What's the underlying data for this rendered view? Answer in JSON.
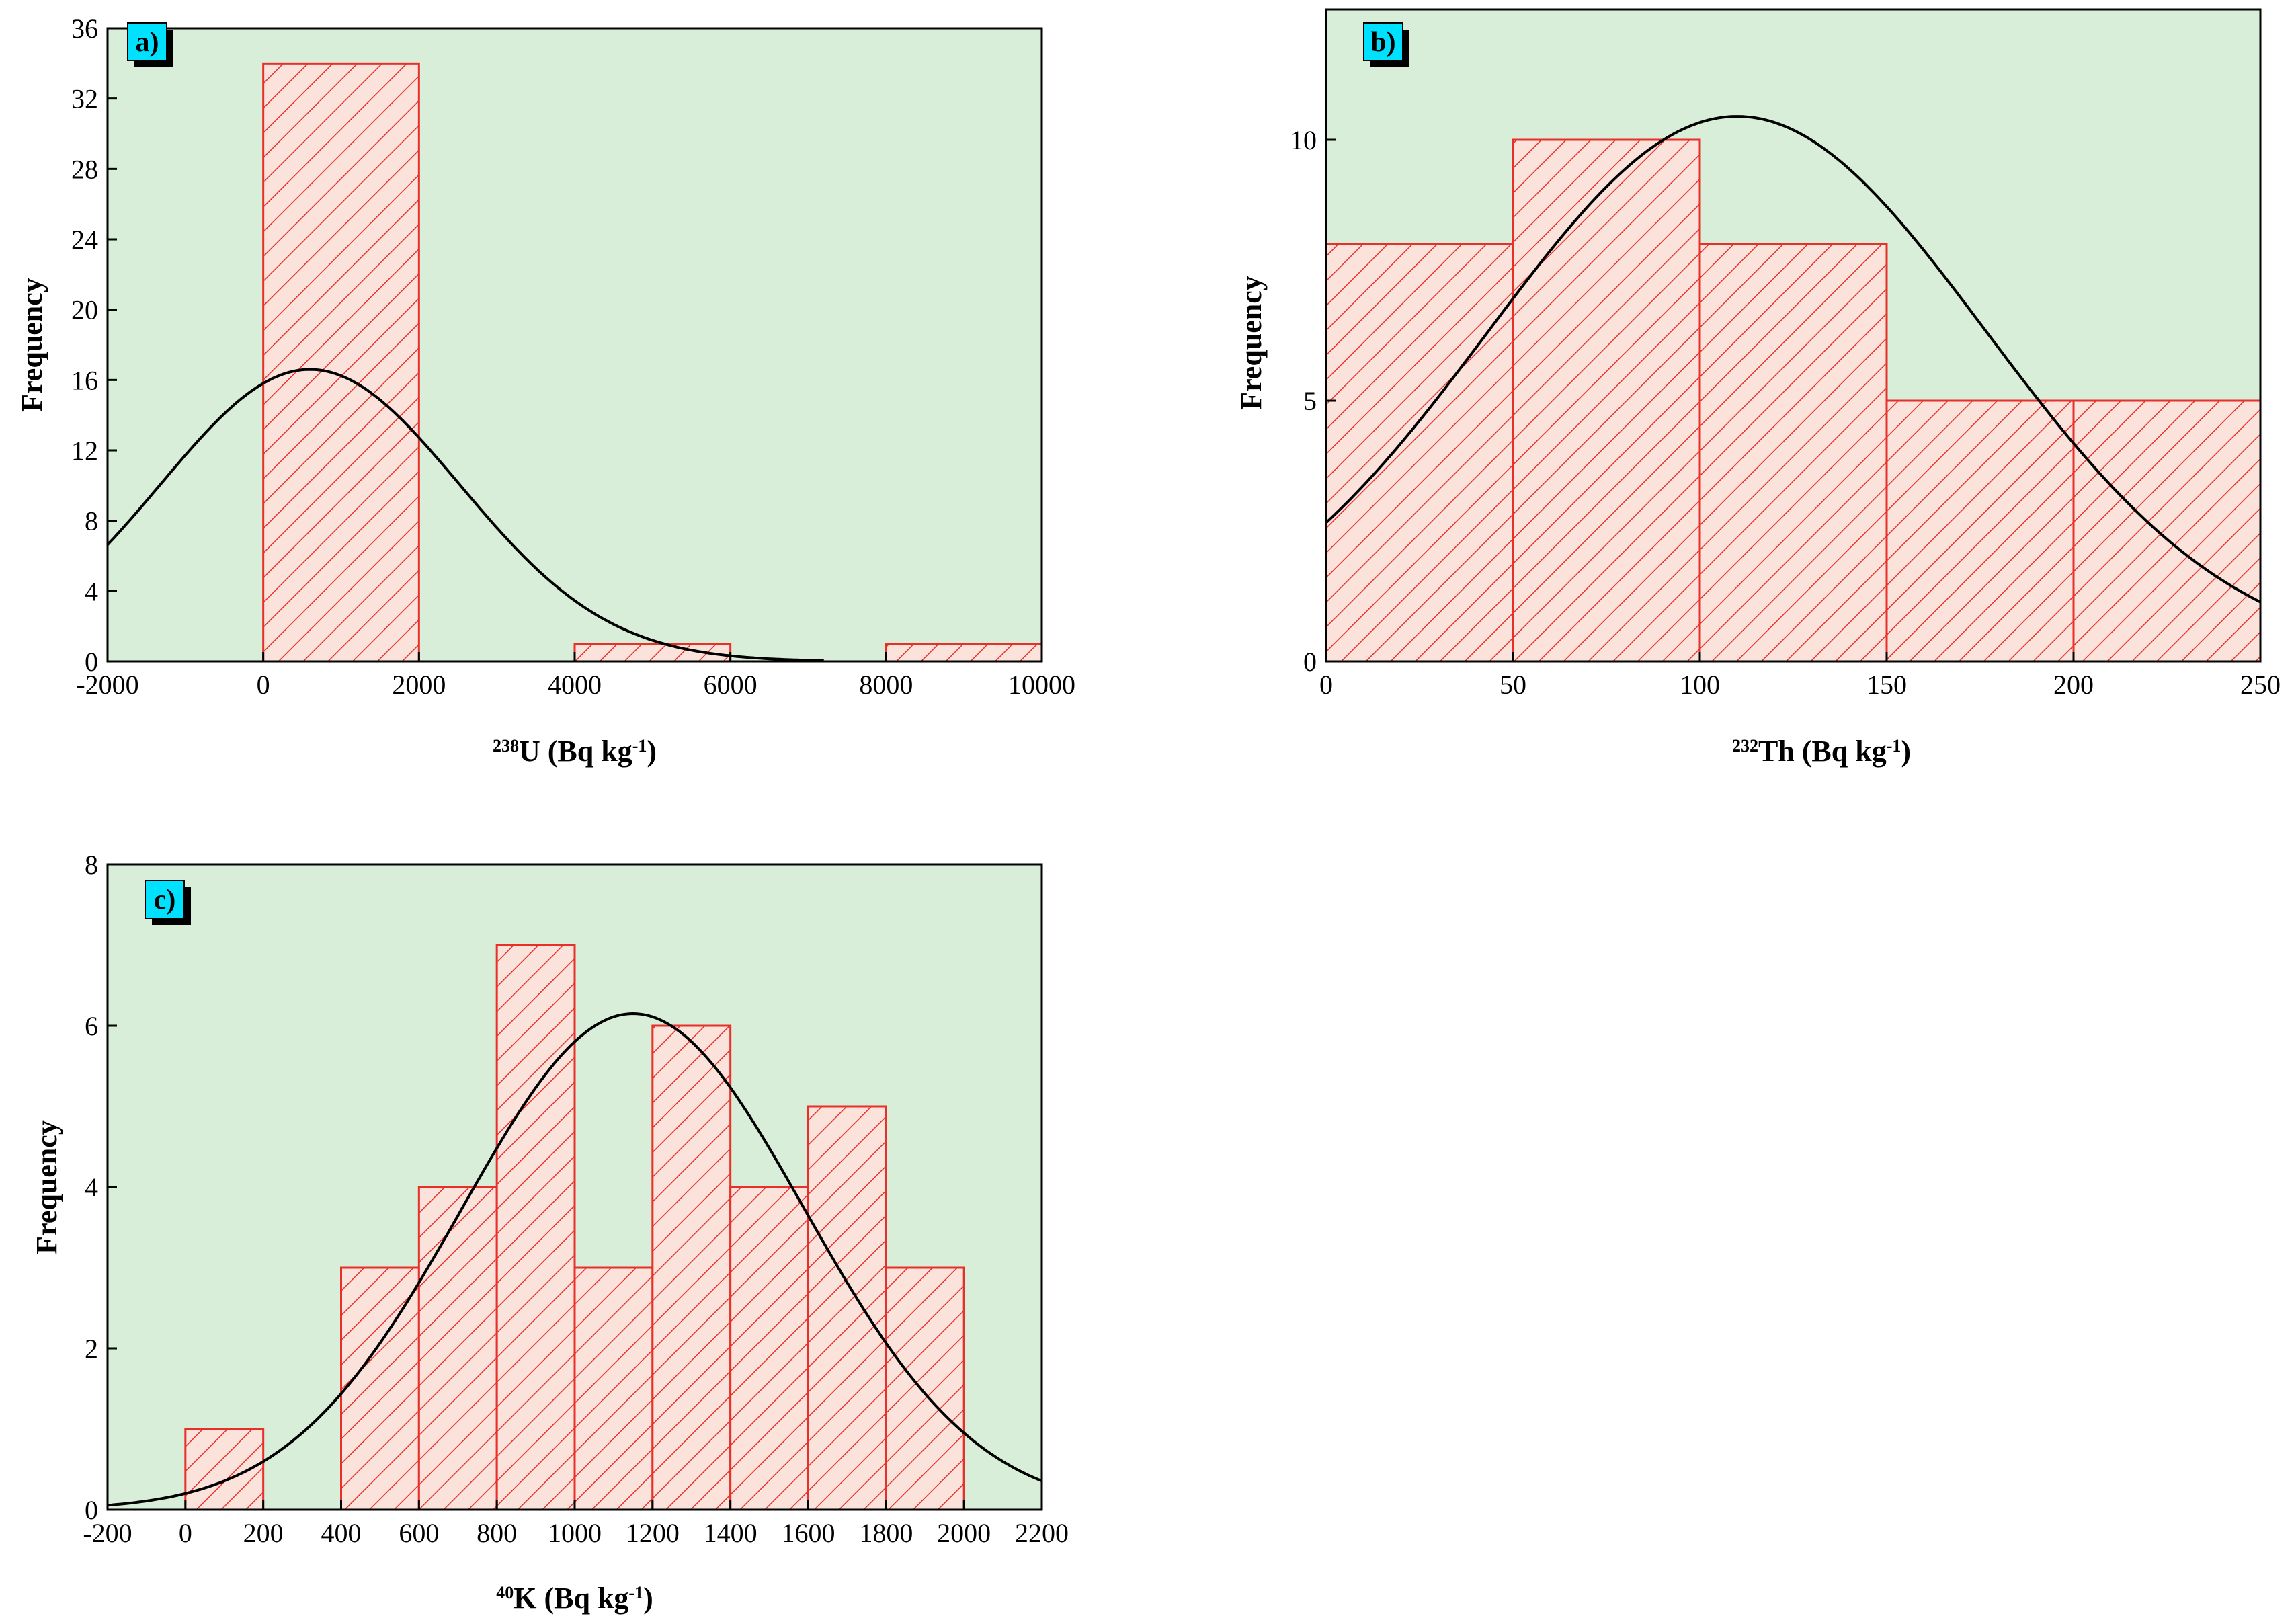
{
  "colors": {
    "plot_bg": "#d8eed8",
    "bar_edge": "#e8302a",
    "bar_hatch": "#e8302a",
    "bar_fill": "#fbe3dc",
    "curve": "#000000",
    "tag_bg": "#00e0ff",
    "tag_shadow": "#000000"
  },
  "chart_data": [
    {
      "id": "a",
      "type": "bar",
      "panel_label": "a)",
      "title": "",
      "xlabel_sup": "238",
      "xlabel_main": "U (Bq kg",
      "xlabel_exp": "-1",
      "xlabel_close": ")",
      "ylabel": "Frequency",
      "xlim": [
        -2000,
        10000
      ],
      "ylim": [
        0,
        36
      ],
      "xticks": [
        -2000,
        0,
        2000,
        4000,
        6000,
        8000,
        10000
      ],
      "yticks": [
        0,
        4,
        8,
        12,
        16,
        20,
        24,
        28,
        32,
        36
      ],
      "bins": [
        {
          "x0": 0,
          "x1": 2000,
          "count": 34
        },
        {
          "x0": 4000,
          "x1": 6000,
          "count": 1
        },
        {
          "x0": 8000,
          "x1": 10000,
          "count": 1
        }
      ],
      "normal_fit": {
        "mean": 600,
        "sd": 1920,
        "peak": 16.6,
        "x_end": 7200
      }
    },
    {
      "id": "b",
      "type": "bar",
      "panel_label": "b)",
      "title": "",
      "xlabel_sup": "232",
      "xlabel_main": "Th (Bq kg",
      "xlabel_exp": "-1",
      "xlabel_close": ")",
      "ylabel": "Frequency",
      "xlim": [
        0,
        250
      ],
      "ylim": [
        0,
        12.5
      ],
      "xticks": [
        0,
        50,
        100,
        150,
        200,
        250
      ],
      "yticks": [
        0,
        5,
        10
      ],
      "bins": [
        {
          "x0": 0,
          "x1": 50,
          "count": 8
        },
        {
          "x0": 50,
          "x1": 100,
          "count": 10
        },
        {
          "x0": 100,
          "x1": 150,
          "count": 8
        },
        {
          "x0": 150,
          "x1": 200,
          "count": 5
        },
        {
          "x0": 200,
          "x1": 250,
          "count": 5
        }
      ],
      "normal_fit": {
        "mean": 110,
        "sd": 66.5,
        "peak": 10.45,
        "x_start": 0,
        "x_end": 250
      }
    },
    {
      "id": "c",
      "type": "bar",
      "panel_label": "c)",
      "title": "",
      "xlabel_sup": "40",
      "xlabel_main": "K (Bq kg",
      "xlabel_exp": "-1",
      "xlabel_close": ")",
      "ylabel": "Frequency",
      "xlim": [
        -200,
        2200
      ],
      "ylim": [
        0,
        8
      ],
      "xticks": [
        -200,
        0,
        200,
        400,
        600,
        800,
        1000,
        1200,
        1400,
        1600,
        1800,
        2000,
        2200
      ],
      "yticks": [
        0,
        2,
        4,
        6,
        8
      ],
      "bins": [
        {
          "x0": 0,
          "x1": 200,
          "count": 1
        },
        {
          "x0": 400,
          "x1": 600,
          "count": 3
        },
        {
          "x0": 600,
          "x1": 800,
          "count": 4
        },
        {
          "x0": 800,
          "x1": 1000,
          "count": 7
        },
        {
          "x0": 1000,
          "x1": 1200,
          "count": 3
        },
        {
          "x0": 1200,
          "x1": 1400,
          "count": 6
        },
        {
          "x0": 1400,
          "x1": 1600,
          "count": 4
        },
        {
          "x0": 1600,
          "x1": 1800,
          "count": 5
        },
        {
          "x0": 1800,
          "x1": 2000,
          "count": 3
        }
      ],
      "normal_fit": {
        "mean": 1150,
        "sd": 440,
        "peak": 6.15,
        "x_start": -200,
        "x_end": 2200
      }
    }
  ]
}
